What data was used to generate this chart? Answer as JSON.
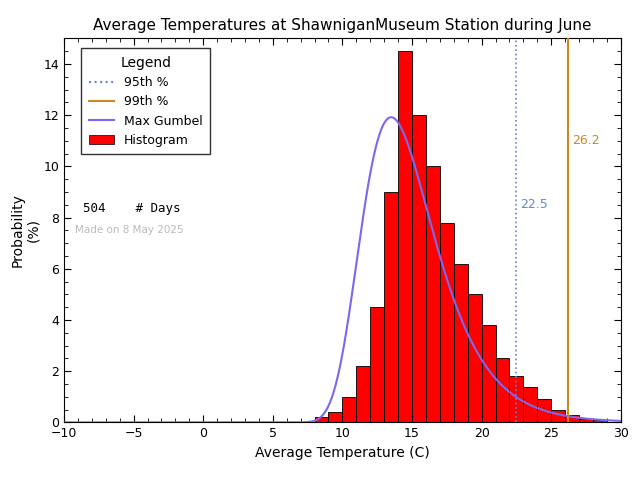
{
  "title": "Average Temperatures at ShawniganMuseum Station during June",
  "xlabel": "Average Temperature (C)",
  "ylabel": "Probability\n(%)",
  "xlim": [
    -10,
    30
  ],
  "ylim": [
    0,
    15
  ],
  "xticks": [
    -10,
    -5,
    0,
    5,
    10,
    15,
    20,
    25,
    30
  ],
  "yticks": [
    0,
    2,
    4,
    6,
    8,
    10,
    12,
    14
  ],
  "hist_bins_left": [
    8,
    9,
    10,
    11,
    12,
    13,
    14,
    15,
    16,
    17,
    18,
    19,
    20,
    21,
    22,
    23,
    24,
    25,
    26,
    27,
    28
  ],
  "hist_values": [
    0.2,
    0.4,
    1.0,
    2.2,
    4.5,
    9.0,
    14.5,
    12.0,
    10.0,
    7.8,
    6.2,
    5.0,
    3.8,
    2.5,
    1.8,
    1.4,
    0.9,
    0.5,
    0.3,
    0.15,
    0.1
  ],
  "hist_color": "#ff0000",
  "hist_edgecolor": "#000000",
  "gumbel_color": "#7b68ee",
  "gumbel_mu": 13.5,
  "gumbel_beta": 2.6,
  "percentile_95_val": 22.5,
  "percentile_95_color": "#6688cc",
  "percentile_99_val": 26.2,
  "percentile_99_color": "#cc8822",
  "percentile_95_label": "22.5",
  "percentile_99_label": "26.2",
  "n_days": 504,
  "made_on": "Made on 8 May 2025",
  "legend_title": "Legend",
  "background_color": "#ffffff",
  "plot_bg": "#ffffff"
}
